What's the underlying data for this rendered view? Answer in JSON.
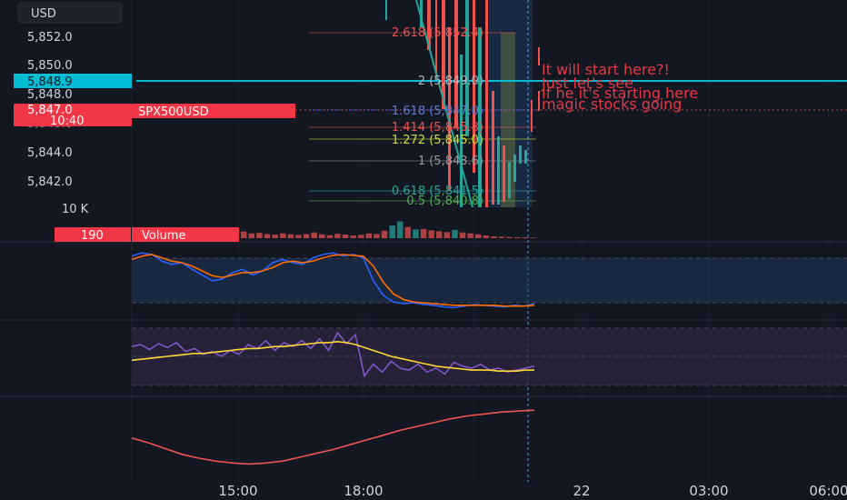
{
  "header": {
    "currency_label": "USD",
    "symbol_badge": "SPX500USD"
  },
  "price_axis": {
    "ticks": [
      "5,852.0",
      "5,850.0",
      "5,848.0",
      "5,846.0",
      "5,844.0",
      "5,842.0"
    ],
    "current_price": "5,848.9",
    "last_price": "5,847.0",
    "countdown": "10:40"
  },
  "volume_axis": {
    "tick": "10 K",
    "current_value": "190",
    "label": "Volume"
  },
  "time_axis": {
    "ticks": [
      "15:00",
      "18:00",
      "22",
      "03:00",
      "06:00"
    ]
  },
  "fib_levels": [
    {
      "label": "2.618 (5,852.4)",
      "color": "#ef5350"
    },
    {
      "label": "2 (5,849.0)",
      "color": "#b2b5be"
    },
    {
      "label": "1.618 (5,847.0)",
      "color": "#2962ff"
    },
    {
      "label": "1.414 (5,845.8)",
      "color": "#ef5350"
    },
    {
      "label": "1.272 (5,845.0)",
      "color": "#cddc39"
    },
    {
      "label": "1 (5,843.6)",
      "color": "#9598a1"
    },
    {
      "label": "0.618 (5,841.5)",
      "color": "#26a69a"
    },
    {
      "label": "0.5 (5,840.8)",
      "color": "#4caf50"
    }
  ],
  "annotation": {
    "lines": [
      "It will start here?!",
      "Just let's see",
      "If he it's starting here",
      "magic stocks going"
    ],
    "color": "#e53945"
  },
  "colors": {
    "background": "#131722",
    "up": "#26a69a",
    "down": "#ef5350",
    "stoch_k": "#2962ff",
    "stoch_d": "#ff6d00",
    "rsi": "#7e57c2",
    "rsi_ma": "#fdd835",
    "accent": "#00bcd4"
  },
  "chart_data": [
    {
      "type": "line",
      "panel": "volume",
      "series": [
        {
          "name": "Volume",
          "values": [
            2.2,
            1.6,
            1.8,
            1.4,
            1.2,
            1.6,
            1.3,
            1.1,
            1.4,
            1.9,
            1.3,
            1.0,
            1.5,
            1.2,
            0.9,
            1.1,
            1.6,
            1.4,
            2.5,
            4.2,
            5.6,
            3.8,
            2.9,
            3.1,
            2.6,
            2.3,
            2.0,
            2.8,
            1.9,
            1.6,
            1.3,
            0.9,
            0.6,
            0.5,
            0.4,
            0.3,
            0.3,
            0.2
          ]
        }
      ],
      "ylim": [
        0,
        10
      ]
    },
    {
      "type": "line",
      "panel": "stochastic",
      "series": [
        {
          "name": "",
          "values": [
            78,
            82,
            80,
            72,
            68,
            70,
            62,
            55,
            48,
            50,
            58,
            62,
            55,
            60,
            70,
            74,
            70,
            68,
            76,
            80,
            82,
            78,
            80,
            76,
            48,
            30,
            22,
            20,
            21,
            19,
            18,
            16,
            15,
            17,
            19,
            18,
            17,
            16,
            18,
            17,
            20
          ]
        },
        {
          "name": "",
          "values": [
            74,
            78,
            80,
            76,
            72,
            70,
            66,
            60,
            54,
            52,
            55,
            58,
            58,
            60,
            64,
            70,
            72,
            70,
            72,
            76,
            79,
            80,
            79,
            78,
            66,
            46,
            32,
            25,
            22,
            21,
            20,
            19,
            18,
            18,
            18,
            18,
            18,
            17,
            17,
            17,
            18
          ]
        }
      ],
      "ylim": [
        0,
        100
      ]
    },
    {
      "type": "line",
      "panel": "rsi",
      "series": [
        {
          "name": "",
          "values": [
            60,
            62,
            57,
            63,
            59,
            64,
            55,
            58,
            52,
            55,
            50,
            56,
            52,
            62,
            58,
            66,
            56,
            64,
            60,
            66,
            58,
            68,
            56,
            74,
            63,
            72,
            30,
            42,
            34,
            45,
            38,
            36,
            42,
            34,
            38,
            32,
            44,
            40,
            38,
            42,
            36,
            38,
            34,
            36,
            38,
            40
          ]
        },
        {
          "name": "",
          "values": [
            46,
            47,
            48,
            49,
            50,
            51,
            52,
            53,
            53,
            54,
            55,
            56,
            57,
            58,
            58,
            59,
            60,
            60,
            61,
            62,
            63,
            64,
            64,
            65,
            64,
            62,
            59,
            56,
            53,
            50,
            48,
            46,
            44,
            42,
            40,
            39,
            38,
            37,
            36,
            36,
            36,
            35,
            35,
            35,
            36,
            36
          ]
        }
      ],
      "ylim": [
        0,
        100
      ]
    },
    {
      "type": "line",
      "panel": "oscillator",
      "series": [
        {
          "name": "",
          "values": [
            38,
            33,
            27,
            21,
            17,
            14,
            12,
            11,
            12,
            14,
            18,
            22,
            26,
            31,
            36,
            41,
            46,
            50,
            54,
            58,
            61,
            63,
            65,
            66,
            67
          ]
        }
      ]
    }
  ]
}
